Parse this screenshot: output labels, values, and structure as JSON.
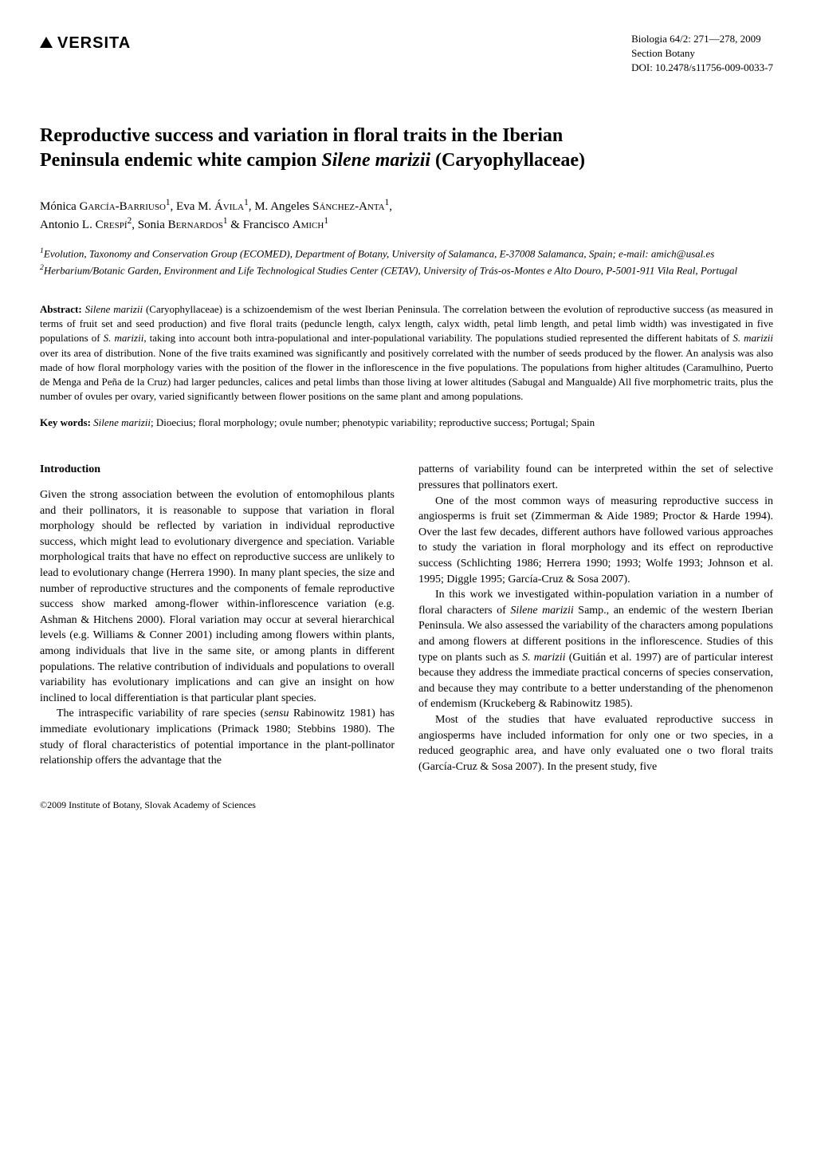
{
  "header": {
    "logo_text": "VERSITA",
    "journal_line1": "Biologia 64/2: 271—278, 2009",
    "journal_line2": "Section Botany",
    "journal_line3": "DOI: 10.2478/s11756-009-0033-7"
  },
  "title": {
    "line1": "Reproductive success and variation in floral traits in the Iberian",
    "line2_pre": "Peninsula endemic white campion ",
    "line2_species": "Silene marizii",
    "line2_post": " (Caryophyllaceae)"
  },
  "authors": {
    "a1_first": "Mónica ",
    "a1_last": "García-Barriuso",
    "a1_sup": "1",
    "a2_first": "Eva M. ",
    "a2_last": "Ávila",
    "a2_sup": "1",
    "a3_first": "M. Angeles ",
    "a3_last": "Sánchez-Anta",
    "a3_sup": "1",
    "a4_first": "Antonio L. ",
    "a4_last": "Crespí",
    "a4_sup": "2",
    "a5_first": "Sonia ",
    "a5_last": "Bernardos",
    "a5_sup": "1",
    "a6_first": "Francisco ",
    "a6_last": "Amich",
    "a6_sup": "1"
  },
  "affiliations": {
    "aff1_sup": "1",
    "aff1": "Evolution, Taxonomy and Conservation Group (ECOMED), Department of Botany, University of Salamanca, E-37008 Salamanca, Spain; e-mail: amich@usal.es",
    "aff2_sup": "2",
    "aff2": "Herbarium/Botanic Garden, Environment and Life Technological Studies Center (CETAV), University of Trás-os-Montes e Alto Douro, P-5001-911 Vila Real, Portugal"
  },
  "abstract": {
    "label": "Abstract:",
    "species1": "Silene marizii",
    "text1": " (Caryophyllaceae) is a schizoendemism of the west Iberian Peninsula. The correlation between the evolution of reproductive success (as measured in terms of fruit set and seed production) and five floral traits (peduncle length, calyx length, calyx width, petal limb length, and petal limb width) was investigated in five populations of ",
    "species2": "S. marizii",
    "text2": ", taking into account both intra-populational and inter-populational variability. The populations studied represented the different habitats of ",
    "species3": "S. marizii",
    "text3": " over its area of distribution. None of the five traits examined was significantly and positively correlated with the number of seeds produced by the flower. An analysis was also made of how floral morphology varies with the position of the flower in the inflorescence in the five populations. The populations from higher altitudes (Caramulhino, Puerto de Menga and Peña de la Cruz) had larger peduncles, calices and petal limbs than those living at lower altitudes (Sabugal and Mangualde) All five morphometric traits, plus the number of ovules per ovary, varied significantly between flower positions on the same plant and among populations."
  },
  "keywords": {
    "label": "Key words:",
    "species": "Silene marizii",
    "text": "; Dioecius; floral morphology; ovule number; phenotypic variability; reproductive success; Portugal; Spain"
  },
  "intro": {
    "heading": "Introduction",
    "p1": "Given the strong association between the evolution of entomophilous plants and their pollinators, it is reasonable to suppose that variation in floral morphology should be reflected by variation in individual reproductive success, which might lead to evolutionary divergence and speciation. Variable morphological traits that have no effect on reproductive success are unlikely to lead to evolutionary change (Herrera 1990). In many plant species, the size and number of reproductive structures and the components of female reproductive success show marked among-flower within-inflorescence variation (e.g. Ashman & Hitchens 2000). Floral variation may occur at several hierarchical levels (e.g. Williams & Conner 2001) including among flowers within plants, among individuals that live in the same site, or among plants in different populations. The relative contribution of individuals and populations to overall variability has evolutionary implications and can give an insight on how inclined to local differentiation is that particular plant species.",
    "p2_pre": "The intraspecific variability of rare species (",
    "p2_italic": "sensu",
    "p2_post": " Rabinowitz 1981) has immediate evolutionary implications (Primack 1980; Stebbins 1980). The study of floral characteristics of potential importance in the plant-pollinator relationship offers the advantage that the",
    "p2_cont": "patterns of variability found can be interpreted within the set of selective pressures that pollinators exert.",
    "p3": "One of the most common ways of measuring reproductive success in angiosperms is fruit set (Zimmerman & Aide 1989; Proctor & Harde 1994). Over the last few decades, different authors have followed various approaches to study the variation in floral morphology and its effect on reproductive success (Schlichting 1986; Herrera 1990; 1993; Wolfe 1993; Johnson et al. 1995; Diggle 1995; García-Cruz & Sosa 2007).",
    "p4_pre": "In this work we investigated within-population variation in a number of floral characters of ",
    "p4_sp1": "Silene marizii",
    "p4_mid1": " Samp., an endemic of the western Iberian Peninsula. We also assessed the variability of the characters among populations and among flowers at different positions in the inflorescence. Studies of this type on plants such as ",
    "p4_sp2": "S. marizii",
    "p4_mid2": " (Guitián et al. 1997) are of particular interest because they address the immediate practical concerns of species conservation, and because they may contribute to a better understanding of the phenomenon of endemism (Kruckeberg & Rabinowitz 1985).",
    "p5": "Most of the studies that have evaluated reproductive success in angiosperms have included information for only one or two species, in a reduced geographic area, and have only evaluated one o two floral traits (García-Cruz & Sosa 2007). In the present study, five"
  },
  "footer": {
    "copyright": "©2009 Institute of Botany, Slovak Academy of Sciences"
  }
}
